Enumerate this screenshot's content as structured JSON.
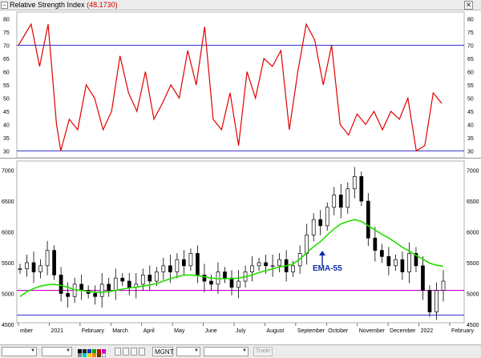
{
  "window": {
    "close_glyph": "✕",
    "minimize_glyph": "–"
  },
  "rsi": {
    "title": "Relative Strength Index",
    "value_text": "(48.1730)",
    "colors": {
      "line": "#e00000",
      "levels": "#3333cc"
    }
  },
  "price": {
    "annotation": "EMA-55",
    "colors": {
      "ema": "#22dd00",
      "support": "#cc00cc",
      "bottom_line": "#3333cc",
      "annotation": "#0a2aa8",
      "candles": "#000000"
    }
  },
  "toolbar": {
    "symbol": "MGNT",
    "trade_label": "Trade",
    "icons": [
      "window-size-dropdown",
      "line-style-dropdown",
      "color-palette",
      "grid-toggle",
      "zoom-tools"
    ]
  },
  "chart_data": [
    {
      "type": "line",
      "name": "rsi",
      "ylim": [
        28,
        82
      ],
      "yticks": [
        30,
        35,
        40,
        45,
        50,
        55,
        60,
        65,
        70,
        75,
        80
      ],
      "levels": [
        30,
        70
      ],
      "x": [
        0,
        0.03,
        0.05,
        0.07,
        0.09,
        0.1,
        0.12,
        0.14,
        0.16,
        0.18,
        0.2,
        0.22,
        0.24,
        0.26,
        0.28,
        0.3,
        0.32,
        0.34,
        0.36,
        0.38,
        0.4,
        0.42,
        0.44,
        0.46,
        0.48,
        0.5,
        0.52,
        0.54,
        0.56,
        0.58,
        0.6,
        0.62,
        0.64,
        0.66,
        0.68,
        0.7,
        0.72,
        0.74,
        0.76,
        0.78,
        0.8,
        0.82,
        0.84,
        0.86,
        0.88,
        0.9,
        0.92,
        0.94,
        0.96,
        0.98,
        1
      ],
      "values": [
        70,
        78,
        62,
        78,
        40,
        30,
        42,
        38,
        55,
        50,
        38,
        45,
        66,
        52,
        45,
        60,
        42,
        48,
        55,
        50,
        68,
        55,
        77,
        42,
        38,
        52,
        32,
        60,
        50,
        65,
        62,
        68,
        38,
        60,
        78,
        72,
        55,
        70,
        40,
        36,
        44,
        40,
        45,
        38,
        45,
        42,
        50,
        30,
        32,
        52,
        48
      ]
    },
    {
      "type": "line",
      "name": "price",
      "ylim": [
        4550,
        7100
      ],
      "yticks": [
        4500,
        5000,
        5500,
        6000,
        6500,
        7000
      ],
      "levels": [
        5050,
        4650
      ],
      "x_labels": [
        "mber",
        "2021",
        "February",
        "March",
        "April",
        "May",
        "June",
        "July",
        "August",
        "September",
        "October",
        "November",
        "December",
        "2022",
        "February"
      ],
      "close": [
        5400,
        5500,
        5350,
        5450,
        5700,
        5300,
        5000,
        4950,
        5150,
        5050,
        5000,
        4950,
        5150,
        5050,
        5250,
        5200,
        5100,
        5150,
        5300,
        5200,
        5350,
        5450,
        5350,
        5550,
        5450,
        5650,
        5300,
        5200,
        5150,
        5350,
        5250,
        5100,
        5200,
        5350,
        5450,
        5500,
        5450,
        5450,
        5550,
        5350,
        5450,
        5650,
        5950,
        6200,
        6100,
        6400,
        6600,
        6400,
        6700,
        6900,
        6500,
        5900,
        5700,
        5600,
        5450,
        5550,
        5350,
        5650,
        5450,
        5050,
        4700,
        5050,
        5200
      ],
      "ema": [
        4950,
        5030,
        5080,
        5120,
        5140,
        5150,
        5130,
        5100,
        5060,
        5050,
        5030,
        5020,
        5020,
        5030,
        5050,
        5070,
        5090,
        5100,
        5120,
        5140,
        5160,
        5200,
        5240,
        5270,
        5300,
        5300,
        5290,
        5270,
        5250,
        5240,
        5240,
        5240,
        5250,
        5270,
        5300,
        5340,
        5370,
        5400,
        5430,
        5450,
        5480,
        5560,
        5660,
        5760,
        5840,
        5950,
        6050,
        6130,
        6170,
        6200,
        6170,
        6100,
        6030,
        5960,
        5900,
        5830,
        5750,
        5690,
        5620,
        5560,
        5490,
        5460,
        5440
      ]
    }
  ]
}
